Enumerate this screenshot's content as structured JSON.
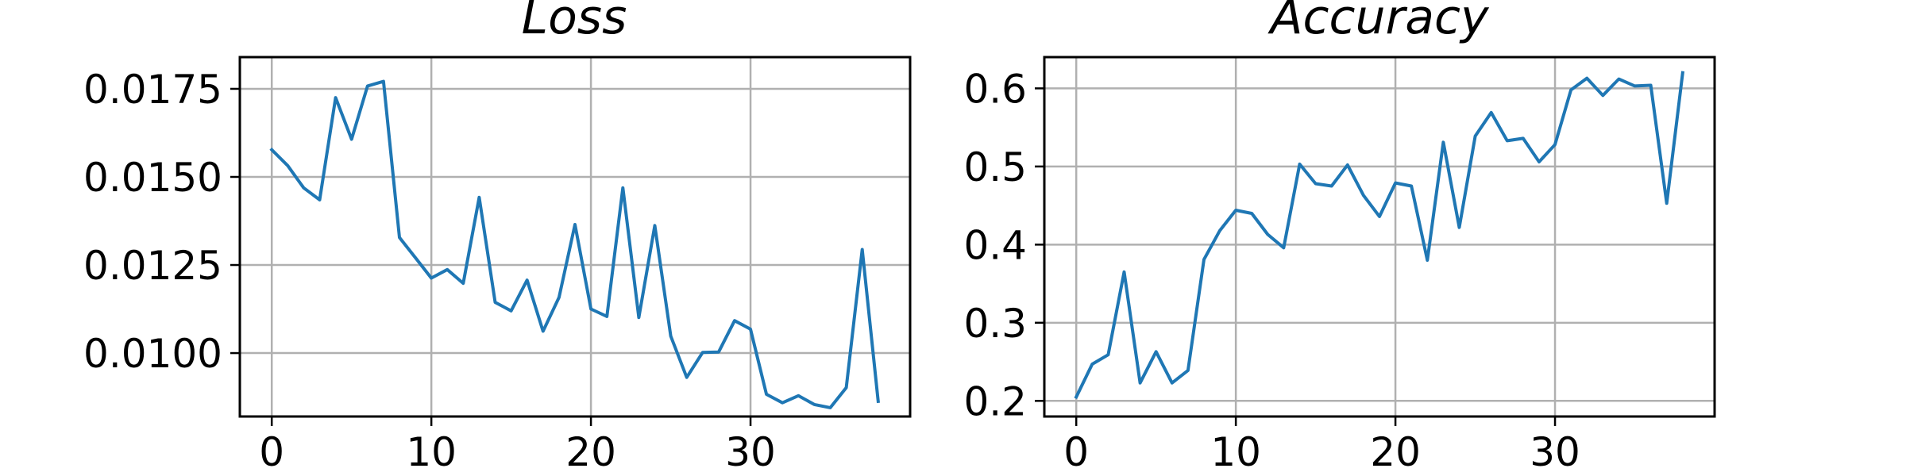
{
  "colors": {
    "series": "#1f77b4",
    "grid": "#b0b0b0",
    "axes": "#000000"
  },
  "chart_data": [
    {
      "type": "line",
      "title": "Loss",
      "xlabel": "",
      "ylabel": "",
      "grid": true,
      "xlim": [
        -2,
        40
      ],
      "ylim": [
        0.0082,
        0.0184
      ],
      "xticks": [
        0,
        10,
        20,
        30
      ],
      "xtick_labels": [
        "0",
        "10",
        "20",
        "30"
      ],
      "yticks": [
        0.01,
        0.0125,
        0.015,
        0.0175
      ],
      "ytick_labels": [
        "0.0100",
        "0.0125",
        "0.0150",
        "0.0175"
      ],
      "series": [
        {
          "x": [
            0,
            1,
            2,
            3,
            4,
            5,
            6,
            7,
            8,
            9,
            10,
            11,
            12,
            13,
            14,
            15,
            16,
            17,
            18,
            19,
            20,
            21,
            22,
            23,
            24,
            25,
            26,
            27,
            28,
            29,
            30,
            31,
            32,
            33,
            34,
            35,
            36,
            37,
            38
          ],
          "values": [
            0.01577,
            0.01532,
            0.01469,
            0.01435,
            0.01725,
            0.01607,
            0.01758,
            0.01771,
            0.01328,
            0.01271,
            0.01213,
            0.01237,
            0.01198,
            0.01442,
            0.01144,
            0.0112,
            0.01207,
            0.01062,
            0.01158,
            0.01365,
            0.01125,
            0.01104,
            0.01469,
            0.01101,
            0.01362,
            0.01048,
            0.00931,
            0.01002,
            0.01003,
            0.01092,
            0.01068,
            0.00883,
            0.00859,
            0.00879,
            0.00854,
            0.00845,
            0.00902,
            0.01294,
            0.00863
          ]
        }
      ]
    },
    {
      "type": "line",
      "title": "Accuracy",
      "xlabel": "",
      "ylabel": "",
      "grid": true,
      "xlim": [
        -2,
        40
      ],
      "ylim": [
        0.18,
        0.64
      ],
      "xticks": [
        0,
        10,
        20,
        30
      ],
      "xtick_labels": [
        "0",
        "10",
        "20",
        "30"
      ],
      "yticks": [
        0.2,
        0.3,
        0.4,
        0.5,
        0.6
      ],
      "ytick_labels": [
        "0.2",
        "0.3",
        "0.4",
        "0.5",
        "0.6"
      ],
      "series": [
        {
          "x": [
            0,
            1,
            2,
            3,
            4,
            5,
            6,
            7,
            8,
            9,
            10,
            11,
            12,
            13,
            14,
            15,
            16,
            17,
            18,
            19,
            20,
            21,
            22,
            23,
            24,
            25,
            26,
            27,
            28,
            29,
            30,
            31,
            32,
            33,
            34,
            35,
            36,
            37,
            38
          ],
          "values": [
            0.205,
            0.247,
            0.259,
            0.365,
            0.223,
            0.263,
            0.223,
            0.239,
            0.381,
            0.418,
            0.444,
            0.44,
            0.413,
            0.396,
            0.503,
            0.478,
            0.475,
            0.502,
            0.463,
            0.436,
            0.479,
            0.475,
            0.38,
            0.531,
            0.422,
            0.539,
            0.569,
            0.533,
            0.536,
            0.506,
            0.528,
            0.598,
            0.613,
            0.591,
            0.612,
            0.603,
            0.604,
            0.453,
            0.62
          ]
        }
      ]
    }
  ]
}
